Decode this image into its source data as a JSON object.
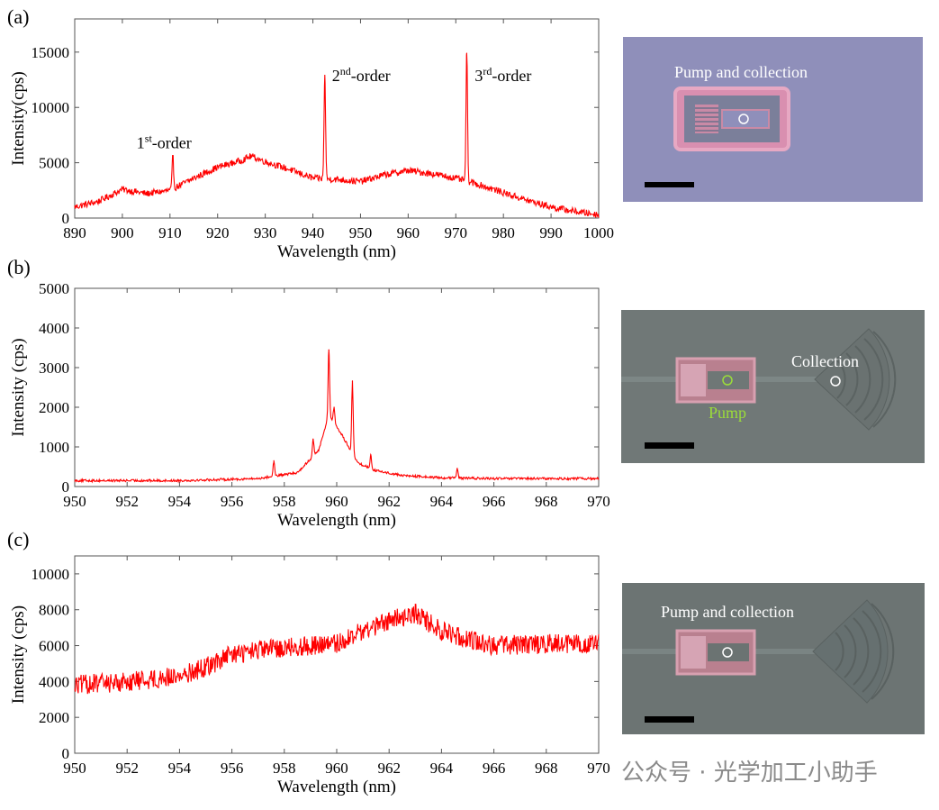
{
  "figure": {
    "panel_labels": [
      "(a)",
      "(b)",
      "(c)"
    ],
    "watermark": "公众号 · 光学加工小助手"
  },
  "chart_data": [
    {
      "type": "line",
      "panel": "(a)",
      "xlabel": "Wavelength (nm)",
      "ylabel": "Intensity(cps)",
      "xlim": [
        890,
        1000
      ],
      "ylim": [
        0,
        18000
      ],
      "xticks": [
        890,
        900,
        910,
        920,
        930,
        940,
        950,
        960,
        970,
        980,
        990,
        1000
      ],
      "yticks": [
        0,
        5000,
        10000,
        15000
      ],
      "series_color": "#ff0000",
      "baseline": [
        [
          890,
          1000
        ],
        [
          895,
          1500
        ],
        [
          900,
          2600
        ],
        [
          905,
          2200
        ],
        [
          910,
          2500
        ],
        [
          915,
          3600
        ],
        [
          920,
          4600
        ],
        [
          925,
          5200
        ],
        [
          927,
          5600
        ],
        [
          930,
          5100
        ],
        [
          935,
          4400
        ],
        [
          940,
          3600
        ],
        [
          945,
          3500
        ],
        [
          950,
          3300
        ],
        [
          955,
          3900
        ],
        [
          960,
          4300
        ],
        [
          965,
          4000
        ],
        [
          970,
          3600
        ],
        [
          975,
          3000
        ],
        [
          980,
          2300
        ],
        [
          985,
          1600
        ],
        [
          990,
          1000
        ],
        [
          995,
          600
        ],
        [
          1000,
          300
        ]
      ],
      "peaks": [
        [
          910.6,
          5600
        ],
        [
          942.5,
          12900
        ],
        [
          972.3,
          14900
        ]
      ],
      "noise": 600,
      "annotations": [
        {
          "base": "1",
          "sup": "st",
          "rest": "-order",
          "x": 903,
          "y": 6300
        },
        {
          "base": "2",
          "sup": "nd",
          "rest": "-order",
          "x": 944,
          "y": 12400
        },
        {
          "base": "3",
          "sup": "rd",
          "rest": "-order",
          "x": 974,
          "y": 12400
        }
      ]
    },
    {
      "type": "line",
      "panel": "(b)",
      "xlabel": "Wavelength (nm)",
      "ylabel": "Intensity (cps)",
      "xlim": [
        950,
        970
      ],
      "ylim": [
        0,
        5000
      ],
      "xticks": [
        950,
        952,
        954,
        956,
        958,
        960,
        962,
        964,
        966,
        968,
        970
      ],
      "yticks": [
        0,
        1000,
        2000,
        3000,
        4000,
        5000
      ],
      "series_color": "#ff0000",
      "baseline": [
        [
          950,
          150
        ],
        [
          954,
          150
        ],
        [
          957,
          200
        ],
        [
          958.5,
          350
        ],
        [
          959.3,
          900
        ],
        [
          959.7,
          1800
        ],
        [
          960.2,
          1300
        ],
        [
          960.8,
          600
        ],
        [
          961.5,
          400
        ],
        [
          962.5,
          280
        ],
        [
          964,
          220
        ],
        [
          966,
          200
        ],
        [
          970,
          200
        ]
      ],
      "peaks": [
        [
          957.6,
          650
        ],
        [
          959.1,
          1200
        ],
        [
          959.7,
          3450
        ],
        [
          959.9,
          2000
        ],
        [
          960.6,
          2650
        ],
        [
          961.3,
          800
        ],
        [
          964.6,
          450
        ]
      ],
      "noise": 60
    },
    {
      "type": "line",
      "panel": "(c)",
      "xlabel": "Wavelength (nm)",
      "ylabel": "Intensity (cps)",
      "xlim": [
        950,
        970
      ],
      "ylim": [
        0,
        11000
      ],
      "xticks": [
        950,
        952,
        954,
        956,
        958,
        960,
        962,
        964,
        966,
        968,
        970
      ],
      "yticks": [
        0,
        2000,
        4000,
        6000,
        8000,
        10000
      ],
      "series_color": "#ff0000",
      "baseline": [
        [
          950,
          3800
        ],
        [
          952,
          4000
        ],
        [
          954,
          4300
        ],
        [
          955,
          4800
        ],
        [
          956,
          5500
        ],
        [
          958,
          5900
        ],
        [
          960,
          6100
        ],
        [
          961,
          6800
        ],
        [
          962,
          7400
        ],
        [
          963,
          7800
        ],
        [
          964,
          6800
        ],
        [
          966,
          6000
        ],
        [
          968,
          6100
        ],
        [
          970,
          6100
        ]
      ],
      "peaks": [],
      "noise": 1100
    }
  ],
  "photos": [
    {
      "label": "Pump and collection",
      "label_color": "#ffffff",
      "bg": "#8f8fba"
    },
    {
      "label_collection": "Collection",
      "label_pump": "Pump",
      "collection_color": "#ffffff",
      "pump_color": "#9bdc3a",
      "bg": "#707877"
    },
    {
      "label": "Pump and collection",
      "label_color": "#ffffff",
      "bg": "#6c7473"
    }
  ]
}
